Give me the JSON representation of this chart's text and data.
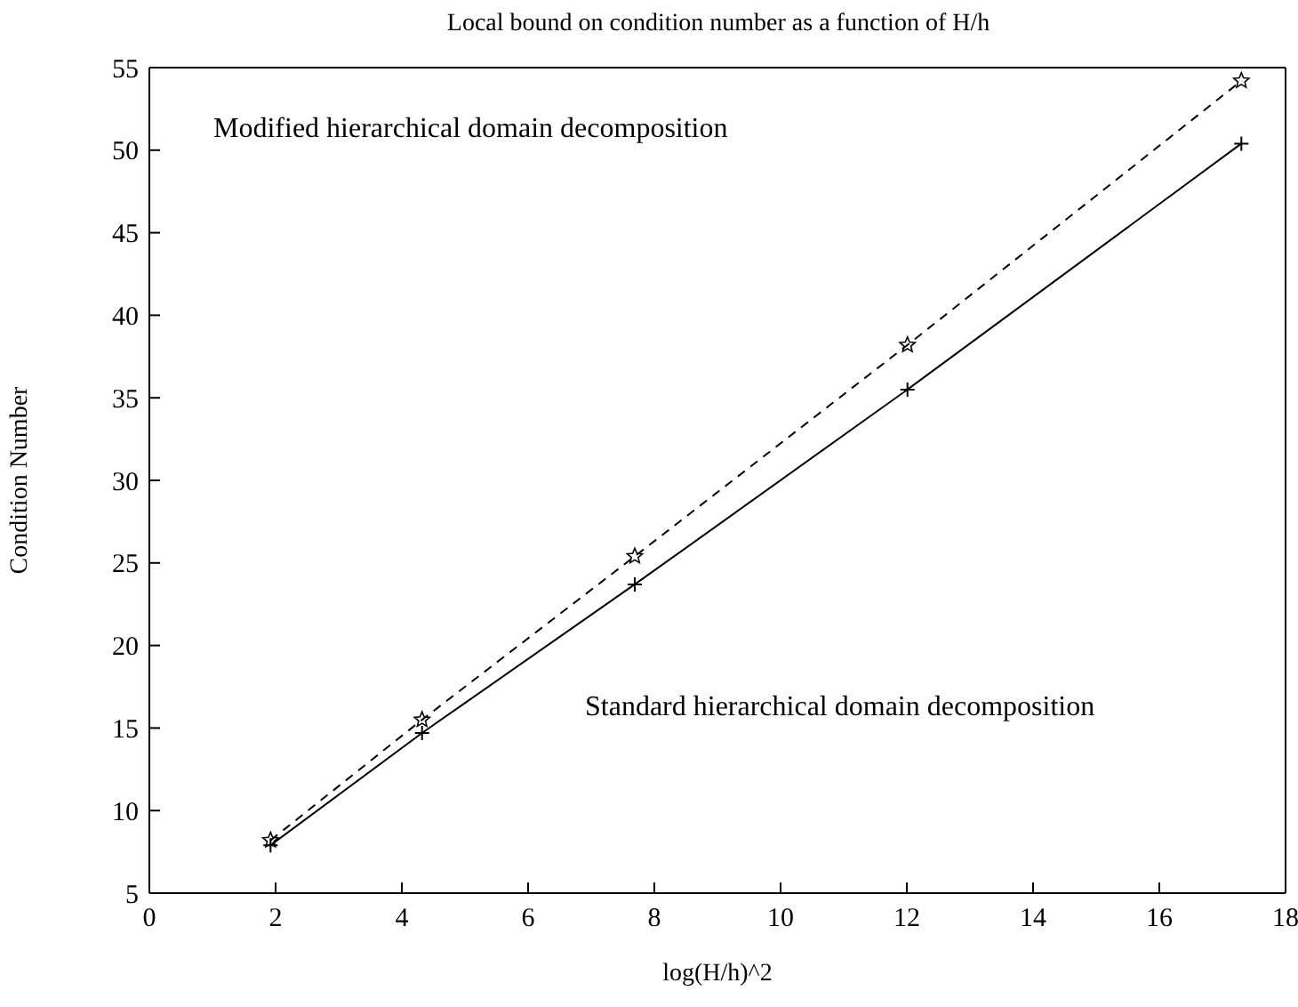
{
  "chart_data": {
    "type": "line",
    "title": "Local bound on condition number as a function of H/h",
    "xlabel": "log(H/h)^2",
    "ylabel": "Condition Number",
    "x": [
      1.92,
      4.32,
      7.69,
      12.01,
      17.3
    ],
    "series": [
      {
        "values": [
          8.2,
          15.5,
          25.4,
          38.2,
          54.2
        ],
        "color": "#000000",
        "line_style": "dashed",
        "marker": "star"
      },
      {
        "values": [
          7.9,
          14.7,
          23.7,
          35.5,
          50.4
        ],
        "color": "#000000",
        "line_style": "solid",
        "marker": "cross"
      }
    ],
    "xlim": [
      0,
      18
    ],
    "xticks": [
      0,
      2,
      4,
      6,
      8,
      10,
      12,
      14,
      16,
      18
    ],
    "ylim": [
      5,
      55
    ],
    "yticks": [
      5,
      10,
      15,
      20,
      25,
      30,
      35,
      40,
      45,
      50,
      55
    ],
    "grid": false,
    "legend": false,
    "annotations": [
      "Modified hierarchical domain decomposition",
      "Standard hierarchical domain decomposition"
    ]
  }
}
